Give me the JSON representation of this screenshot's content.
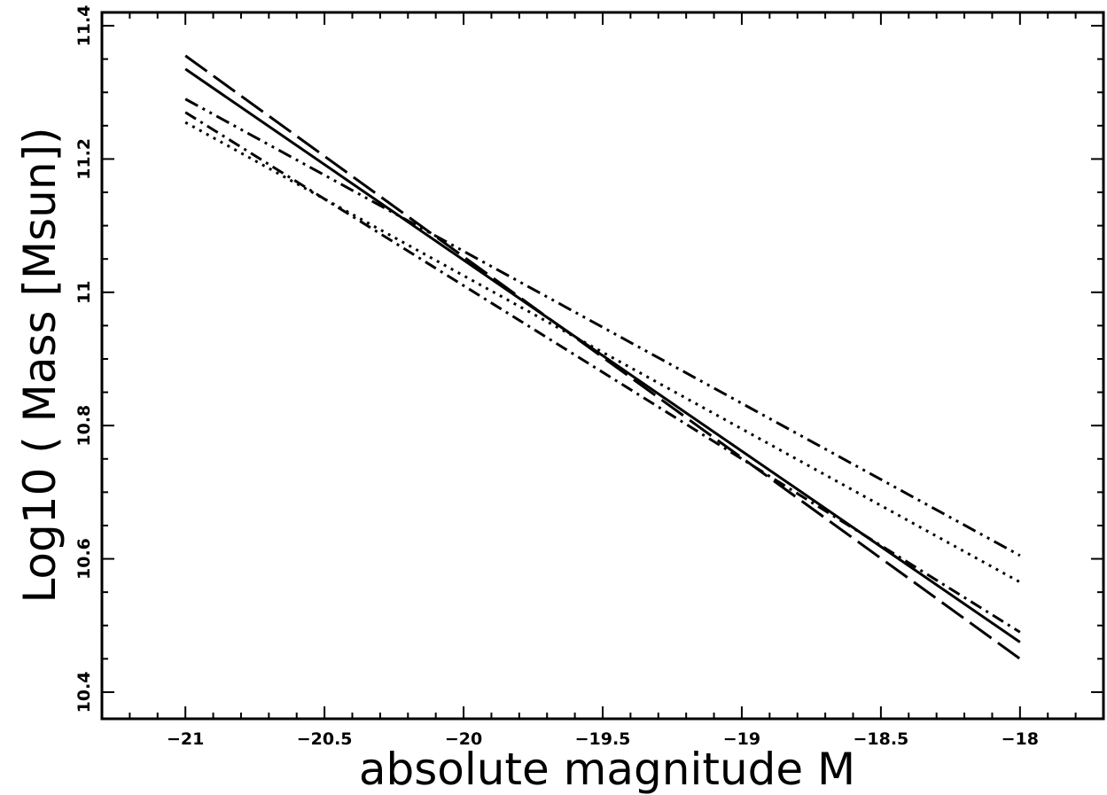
{
  "chart_data": {
    "type": "line",
    "title": "",
    "xlabel": "absolute magnitude M",
    "ylabel": "Log10 ( Mass [Msun])",
    "xlim": [
      -21.3,
      -17.7
    ],
    "ylim": [
      10.36,
      11.42
    ],
    "x_ticks": [
      -21,
      -20.5,
      -20,
      -19.5,
      -19,
      -18.5,
      -18
    ],
    "x_tick_labels": [
      "-21",
      "-20.5",
      "-20",
      "-19.5",
      "-19",
      "-18.5",
      "-18"
    ],
    "y_ticks": [
      10.4,
      10.6,
      10.8,
      11,
      11.2,
      11.4
    ],
    "y_tick_labels": [
      "10.4",
      "10.6",
      "10.8",
      "11",
      "11.2",
      "11.4"
    ],
    "grid": false,
    "series": [
      {
        "style": "solid",
        "x": [
          -21,
          -18
        ],
        "y": [
          11.335,
          10.475
        ]
      },
      {
        "style": "long-dash",
        "x": [
          -21,
          -18
        ],
        "y": [
          11.355,
          10.45
        ]
      },
      {
        "style": "dash-dot",
        "x": [
          -21,
          -18
        ],
        "y": [
          11.27,
          10.49
        ]
      },
      {
        "style": "dotted",
        "x": [
          -21,
          -18
        ],
        "y": [
          11.255,
          10.565
        ]
      },
      {
        "style": "dash-dot-dot",
        "x": [
          -21,
          -18
        ],
        "y": [
          11.29,
          10.605
        ]
      }
    ],
    "colors": {
      "line": "#000000",
      "background": "#ffffff"
    }
  }
}
